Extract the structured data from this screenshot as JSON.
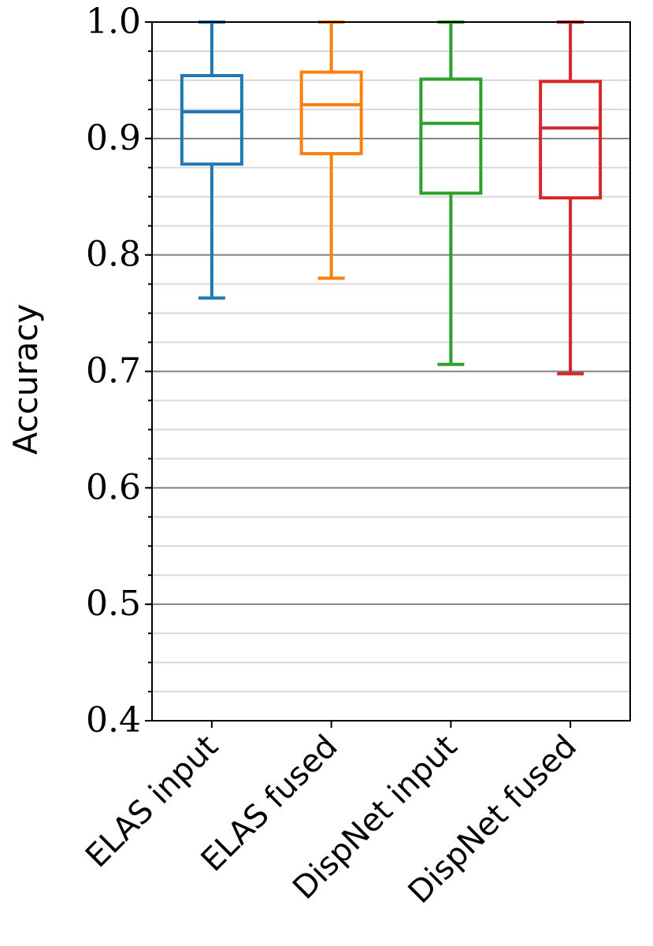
{
  "chart_data": {
    "type": "box",
    "ylabel": "Accuracy",
    "xlabel": "",
    "ylim": [
      0.4,
      1.0
    ],
    "yticks": [
      "0.4",
      "0.5",
      "0.6",
      "0.7",
      "0.8",
      "0.9",
      "1.0"
    ],
    "yticks_values": [
      0.4,
      0.5,
      0.6,
      0.7,
      0.8,
      0.9,
      1.0
    ],
    "grid": {
      "major": true,
      "minor": true,
      "minor_step": 0.025
    },
    "categories": [
      "ELAS input",
      "ELAS fused",
      "DispNet input",
      "DispNet fused"
    ],
    "series": [
      {
        "whisker_low": 0.763,
        "q1": 0.878,
        "median": 0.923,
        "q3": 0.954,
        "whisker_high": 1.0,
        "color": "#1f77b4"
      },
      {
        "whisker_low": 0.78,
        "q1": 0.887,
        "median": 0.929,
        "q3": 0.957,
        "whisker_high": 1.0,
        "color": "#ff7f0e"
      },
      {
        "whisker_low": 0.706,
        "q1": 0.853,
        "median": 0.913,
        "q3": 0.951,
        "whisker_high": 1.0,
        "color": "#2ca02c"
      },
      {
        "whisker_low": 0.698,
        "q1": 0.849,
        "median": 0.909,
        "q3": 0.949,
        "whisker_high": 1.0,
        "color": "#d62728"
      }
    ]
  }
}
